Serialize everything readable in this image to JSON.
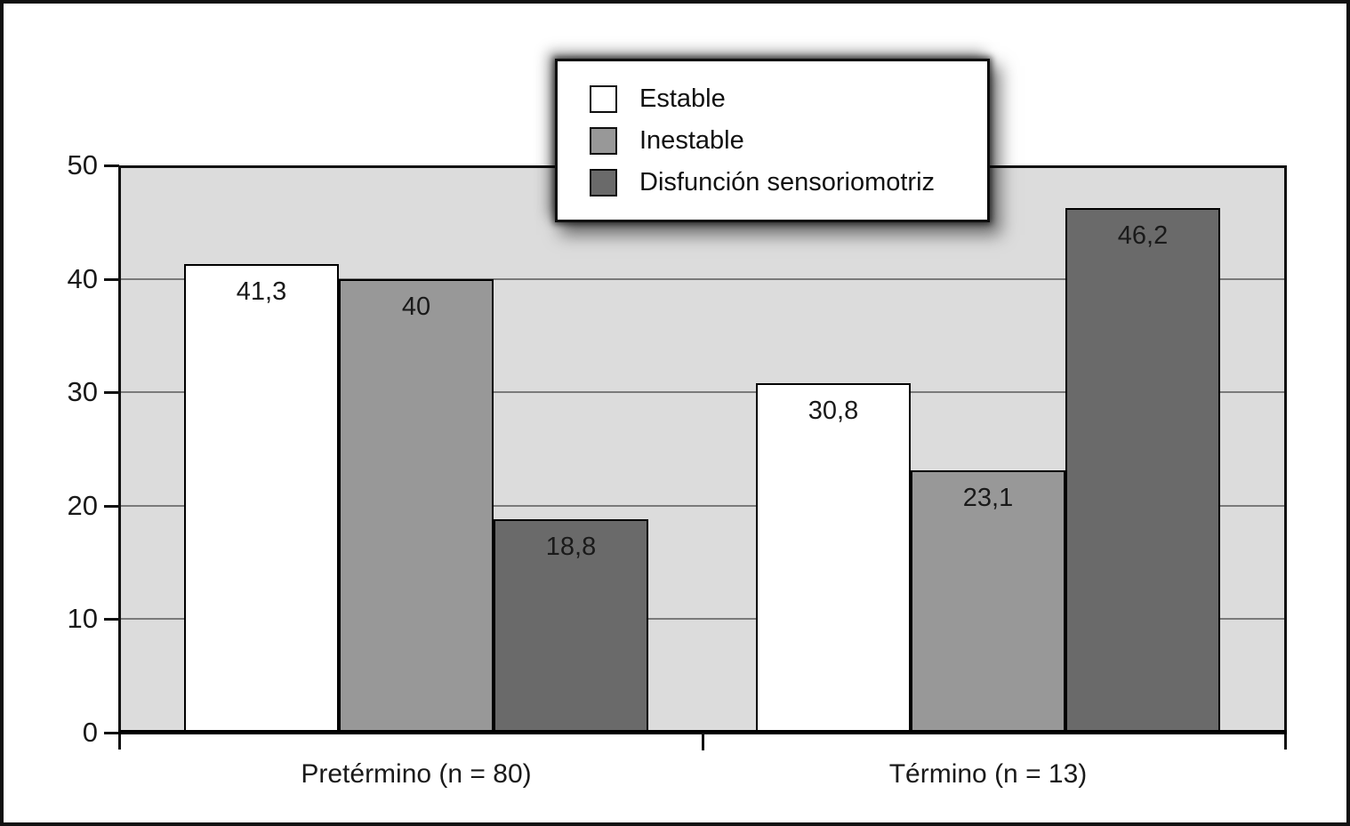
{
  "chart_data": {
    "type": "bar",
    "title": "",
    "categories": [
      "Pretérmino (n = 80)",
      "Término (n = 13)"
    ],
    "series": [
      {
        "name": "Estable",
        "values": [
          41.3,
          30.8
        ],
        "value_labels": [
          "41,3",
          "30,8"
        ],
        "color": "#ffffff"
      },
      {
        "name": "Inestable",
        "values": [
          40,
          23.1
        ],
        "value_labels": [
          "40",
          "23,1"
        ],
        "color": "#989898"
      },
      {
        "name": "Disfunción sensoriomotriz",
        "values": [
          18.8,
          46.2
        ],
        "value_labels": [
          "18,8",
          "46,2"
        ],
        "color": "#6a6a6a"
      }
    ],
    "xlabel": "",
    "ylabel": "",
    "ylim": [
      0,
      50
    ],
    "yticks": [
      0,
      10,
      20,
      30,
      40,
      50
    ],
    "ytick_labels": [
      "0",
      "10",
      "20",
      "30",
      "40",
      "50"
    ],
    "grid": true,
    "legend_position": "top-center",
    "colors": {
      "plot_background": "#dcdcdc",
      "gridline": "#7a7a7a",
      "axis": "#111111",
      "bar_border": "#000000",
      "text": "#1a1a1a"
    }
  },
  "legend": {
    "items": [
      {
        "label": "Estable",
        "color": "#ffffff"
      },
      {
        "label": "Inestable",
        "color": "#989898"
      },
      {
        "label": "Disfunción sensoriomotriz",
        "color": "#6a6a6a"
      }
    ]
  }
}
